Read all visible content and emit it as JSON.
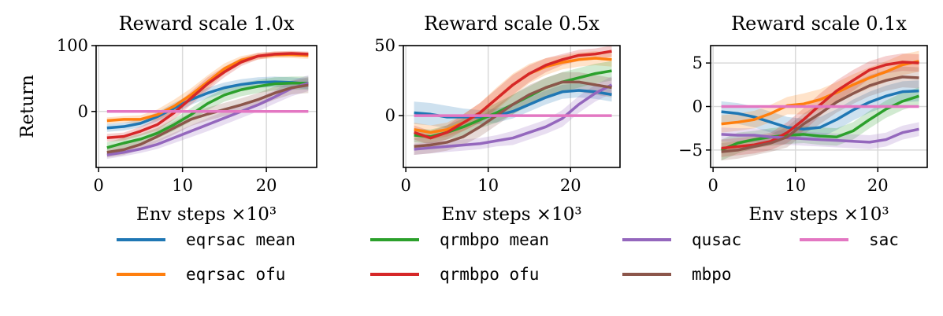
{
  "chart_data": {
    "type": "line",
    "colors": {
      "eqrsac_mean": "#1f77b4",
      "eqrsac_ofu": "#ff7f0e",
      "qrmbpo_mean": "#2ca02c",
      "qrmbpo_ofu": "#d62728",
      "qusac": "#9467bd",
      "mbpo": "#8c564b",
      "sac": "#e377c2"
    },
    "legend": {
      "placement": "bottom",
      "entries": [
        {
          "key": "eqrsac_mean",
          "label": "eqrsac mean"
        },
        {
          "key": "qrmbpo_mean",
          "label": "qrmbpo mean"
        },
        {
          "key": "qusac",
          "label": "qusac"
        },
        {
          "key": "sac",
          "label": "sac"
        },
        {
          "key": "eqrsac_ofu",
          "label": "eqrsac ofu"
        },
        {
          "key": "qrmbpo_ofu",
          "label": "qrmbpo ofu"
        },
        {
          "key": "mbpo",
          "label": "mbpo"
        }
      ]
    },
    "x": [
      1,
      3,
      5,
      7,
      9,
      11,
      13,
      15,
      17,
      19,
      21,
      23,
      25
    ],
    "x_unit_label": "Env steps ×10³",
    "grid": true,
    "panels": [
      {
        "title": "Reward scale 1.0x",
        "ylabel": "Return",
        "xlim": [
          -0.3,
          26
        ],
        "ylim": [
          -85,
          100
        ],
        "xticks": [
          0,
          10,
          20
        ],
        "yticks": [
          0,
          100
        ],
        "series": [
          {
            "key": "eqrsac_mean",
            "values": [
              -25,
              -23,
              -18,
              -8,
              5,
              18,
              28,
              36,
              41,
              44,
              45,
              44,
              42
            ],
            "band": [
              6,
              6,
              6,
              7,
              8,
              8,
              8,
              8,
              8,
              8,
              8,
              8,
              8
            ]
          },
          {
            "key": "eqrsac_ofu",
            "values": [
              -14,
              -12,
              -12,
              -5,
              8,
              25,
              45,
              65,
              78,
              84,
              86,
              86,
              85
            ],
            "band": [
              5,
              5,
              6,
              8,
              10,
              10,
              10,
              8,
              6,
              5,
              5,
              5,
              5
            ]
          },
          {
            "key": "qrmbpo_mean",
            "values": [
              -55,
              -48,
              -42,
              -33,
              -20,
              -5,
              12,
              25,
              33,
              38,
              42,
              43,
              43
            ],
            "band": [
              8,
              8,
              8,
              8,
              9,
              10,
              10,
              10,
              10,
              10,
              10,
              10,
              10
            ]
          },
          {
            "key": "qrmbpo_ofu",
            "values": [
              -40,
              -38,
              -30,
              -20,
              -2,
              20,
              42,
              60,
              75,
              84,
              87,
              88,
              87
            ],
            "band": [
              6,
              6,
              7,
              9,
              10,
              10,
              10,
              8,
              6,
              5,
              4,
              4,
              4
            ]
          },
          {
            "key": "qusac",
            "values": [
              -66,
              -62,
              -57,
              -50,
              -40,
              -30,
              -20,
              -10,
              0,
              10,
              22,
              35,
              43
            ],
            "band": [
              6,
              6,
              6,
              7,
              8,
              9,
              10,
              10,
              10,
              10,
              10,
              12,
              12
            ]
          },
          {
            "key": "mbpo",
            "values": [
              -62,
              -58,
              -50,
              -38,
              -25,
              -12,
              -4,
              3,
              10,
              18,
              28,
              36,
              40
            ],
            "band": [
              8,
              8,
              8,
              9,
              10,
              10,
              10,
              10,
              10,
              10,
              10,
              10,
              12
            ]
          },
          {
            "key": "sac",
            "values": [
              0,
              0,
              0,
              0,
              0,
              0,
              0,
              0,
              0,
              0,
              0,
              0,
              0
            ],
            "band": [
              0,
              0,
              0,
              0,
              0,
              0,
              0,
              0,
              0,
              0,
              0,
              0,
              0
            ]
          }
        ]
      },
      {
        "title": "Reward scale 0.5x",
        "ylabel": "",
        "xlim": [
          -0.3,
          26
        ],
        "ylim": [
          -37,
          50
        ],
        "xticks": [
          0,
          10,
          20
        ],
        "yticks": [
          0,
          50
        ],
        "series": [
          {
            "key": "eqrsac_mean",
            "values": [
              2,
              1,
              -1,
              -1,
              -1,
              0,
              3,
              8,
              13,
              17,
              18,
              17,
              15
            ],
            "band": [
              8,
              8,
              8,
              6,
              5,
              5,
              5,
              5,
              5,
              5,
              5,
              5,
              5
            ]
          },
          {
            "key": "eqrsac_ofu",
            "values": [
              -10,
              -12,
              -10,
              -5,
              2,
              12,
              22,
              30,
              35,
              38,
              40,
              41,
              40
            ],
            "band": [
              5,
              5,
              5,
              6,
              7,
              8,
              8,
              7,
              6,
              5,
              5,
              5,
              5
            ]
          },
          {
            "key": "qrmbpo_mean",
            "values": [
              -14,
              -15,
              -12,
              -8,
              -3,
              2,
              8,
              14,
              20,
              24,
              27,
              30,
              32
            ],
            "band": [
              5,
              5,
              5,
              6,
              6,
              7,
              7,
              7,
              7,
              7,
              7,
              7,
              7
            ]
          },
          {
            "key": "qrmbpo_ofu",
            "values": [
              -12,
              -16,
              -12,
              -5,
              2,
              12,
              22,
              30,
              36,
              40,
              43,
              44,
              46
            ],
            "band": [
              5,
              5,
              5,
              6,
              7,
              7,
              7,
              6,
              5,
              4,
              4,
              4,
              4
            ]
          },
          {
            "key": "qusac",
            "values": [
              -24,
              -23,
              -22,
              -21,
              -20,
              -18,
              -16,
              -12,
              -8,
              -2,
              8,
              16,
              22
            ],
            "band": [
              4,
              4,
              4,
              4,
              4,
              4,
              5,
              5,
              5,
              6,
              6,
              6,
              6
            ]
          },
          {
            "key": "mbpo",
            "values": [
              -22,
              -21,
              -19,
              -15,
              -8,
              0,
              8,
              15,
              20,
              24,
              24,
              22,
              20
            ],
            "band": [
              6,
              6,
              6,
              6,
              7,
              7,
              7,
              7,
              7,
              7,
              7,
              7,
              7
            ]
          },
          {
            "key": "sac",
            "values": [
              0,
              0,
              0,
              0,
              0,
              0,
              0,
              0,
              0,
              0,
              0,
              0,
              0
            ],
            "band": [
              0,
              0,
              0,
              0,
              0,
              0,
              0,
              0,
              0,
              0,
              0,
              0,
              0
            ]
          }
        ]
      },
      {
        "title": "Reward scale 0.1x",
        "ylabel": "",
        "xlim": [
          -0.3,
          26
        ],
        "ylim": [
          -7,
          7
        ],
        "xticks": [
          0,
          10,
          20
        ],
        "yticks": [
          -5,
          0,
          5
        ],
        "series": [
          {
            "key": "eqrsac_mean",
            "values": [
              -0.6,
              -0.8,
              -1.2,
              -1.8,
              -2.4,
              -2.6,
              -2.4,
              -1.5,
              -0.4,
              0.5,
              1.2,
              1.7,
              1.8
            ],
            "band": [
              1.2,
              1.2,
              1.2,
              1.2,
              1.2,
              1.2,
              1.2,
              1.2,
              1.2,
              1.2,
              1.2,
              1.2,
              1.2
            ]
          },
          {
            "key": "eqrsac_ofu",
            "values": [
              -2.0,
              -1.8,
              -1.5,
              -0.8,
              0.1,
              0.3,
              0.8,
              1.6,
              2.5,
              3.3,
              4.0,
              4.8,
              5.2
            ],
            "band": [
              1.0,
              1.0,
              1.0,
              1.0,
              1.0,
              1.2,
              1.2,
              1.2,
              1.2,
              1.2,
              1.2,
              1.2,
              1.2
            ]
          },
          {
            "key": "qrmbpo_mean",
            "values": [
              -5.0,
              -4.2,
              -3.8,
              -3.5,
              -3.3,
              -3.2,
              -3.4,
              -3.5,
              -2.8,
              -1.5,
              -0.3,
              0.6,
              1.2
            ],
            "band": [
              1.2,
              1.2,
              1.0,
              1.0,
              1.0,
              1.0,
              1.0,
              1.0,
              1.0,
              1.0,
              1.0,
              1.0,
              1.0
            ]
          },
          {
            "key": "qrmbpo_ofu",
            "values": [
              -4.8,
              -4.6,
              -4.4,
              -4.0,
              -3.0,
              -1.5,
              0.2,
              1.8,
              3.0,
              4.2,
              4.8,
              5.1,
              5.0
            ],
            "band": [
              1.0,
              1.0,
              1.0,
              1.0,
              1.2,
              1.3,
              1.3,
              1.2,
              1.2,
              1.0,
              1.0,
              1.0,
              1.0
            ]
          },
          {
            "key": "qusac",
            "values": [
              -3.2,
              -3.3,
              -3.3,
              -3.5,
              -3.6,
              -3.7,
              -3.8,
              -3.9,
              -4.0,
              -4.1,
              -3.8,
              -3.0,
              -2.6
            ],
            "band": [
              0.8,
              0.8,
              0.8,
              0.8,
              0.8,
              0.8,
              0.8,
              0.8,
              0.8,
              0.8,
              0.8,
              0.8,
              0.8
            ]
          },
          {
            "key": "mbpo",
            "values": [
              -5.2,
              -5.0,
              -4.6,
              -4.2,
              -3.5,
              -2.0,
              -0.8,
              0.5,
              1.5,
              2.4,
              3.0,
              3.4,
              3.3
            ],
            "band": [
              1.0,
              1.0,
              1.0,
              1.0,
              1.2,
              1.2,
              1.2,
              1.2,
              1.2,
              1.2,
              1.2,
              1.2,
              1.2
            ]
          },
          {
            "key": "sac",
            "values": [
              0,
              0,
              0,
              0,
              0,
              0,
              0,
              0,
              0,
              0,
              0,
              0,
              0
            ],
            "band": [
              0,
              0,
              0,
              0,
              0,
              0,
              0,
              0,
              0,
              0,
              0,
              0,
              0
            ]
          }
        ]
      }
    ]
  }
}
